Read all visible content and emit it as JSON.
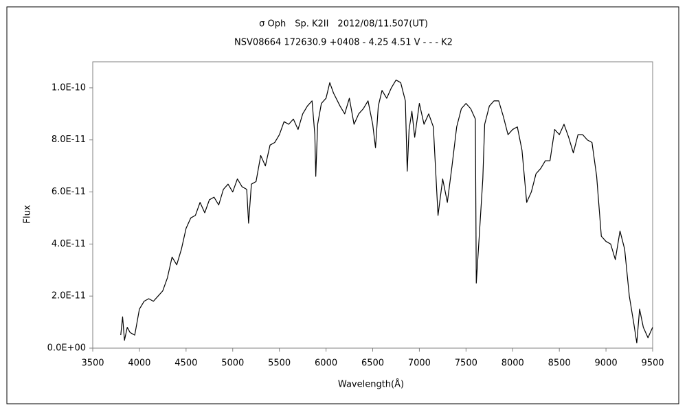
{
  "chart_data": {
    "type": "line",
    "title": "σ Oph　Sp. K2II　2012/08/11.507(UT)",
    "subtitle": "NSV08664 172630.9 +0408 - 4.25 4.51 V - - - K2",
    "xlabel": "Wavelength(Å)",
    "ylabel": "Flux",
    "xlim": [
      3500,
      9500
    ],
    "xticks": [
      3500,
      4000,
      4500,
      5000,
      5500,
      6000,
      6500,
      7000,
      7500,
      8000,
      8500,
      9000,
      9500
    ],
    "ylim": [
      0,
      1.1e-10
    ],
    "yticks": [
      {
        "value": 0,
        "label": "0.0E+00"
      },
      {
        "value": 2e-11,
        "label": "2.0E-11"
      },
      {
        "value": 4e-11,
        "label": "4.0E-11"
      },
      {
        "value": 6e-11,
        "label": "6.0E-11"
      },
      {
        "value": 8e-11,
        "label": "8.0E-11"
      },
      {
        "value": 1e-10,
        "label": "1.0E-10"
      }
    ],
    "grid": false,
    "series": [
      {
        "color": "#000000",
        "x": [
          3800,
          3820,
          3840,
          3870,
          3900,
          3950,
          4000,
          4050,
          4100,
          4150,
          4200,
          4250,
          4300,
          4350,
          4400,
          4450,
          4500,
          4550,
          4600,
          4650,
          4700,
          4750,
          4800,
          4850,
          4900,
          4950,
          5000,
          5050,
          5100,
          5150,
          5170,
          5200,
          5250,
          5300,
          5350,
          5400,
          5450,
          5500,
          5550,
          5600,
          5650,
          5700,
          5750,
          5800,
          5850,
          5880,
          5890,
          5910,
          5950,
          6000,
          6040,
          6080,
          6150,
          6200,
          6250,
          6300,
          6350,
          6400,
          6450,
          6500,
          6530,
          6560,
          6600,
          6650,
          6700,
          6750,
          6800,
          6850,
          6870,
          6890,
          6920,
          6950,
          7000,
          7050,
          7100,
          7150,
          7200,
          7250,
          7300,
          7350,
          7400,
          7450,
          7500,
          7550,
          7600,
          7610,
          7640,
          7680,
          7700,
          7750,
          7800,
          7850,
          7900,
          7950,
          8000,
          8050,
          8100,
          8150,
          8200,
          8250,
          8300,
          8350,
          8400,
          8450,
          8500,
          8550,
          8600,
          8650,
          8700,
          8750,
          8800,
          8850,
          8900,
          8950,
          9000,
          9050,
          9100,
          9150,
          9200,
          9250,
          9300,
          9330,
          9360,
          9400,
          9450,
          9500
        ],
        "values": [
          5e-12,
          1.2e-11,
          3e-12,
          8e-12,
          6e-12,
          5e-12,
          1.5e-11,
          1.8e-11,
          1.9e-11,
          1.8e-11,
          2e-11,
          2.2e-11,
          2.7e-11,
          3.5e-11,
          3.2e-11,
          3.8e-11,
          4.6e-11,
          5e-11,
          5.1e-11,
          5.6e-11,
          5.2e-11,
          5.7e-11,
          5.8e-11,
          5.5e-11,
          6.1e-11,
          6.3e-11,
          6e-11,
          6.5e-11,
          6.2e-11,
          6.1e-11,
          4.8e-11,
          6.3e-11,
          6.4e-11,
          7.4e-11,
          7e-11,
          7.8e-11,
          7.9e-11,
          8.2e-11,
          8.7e-11,
          8.6e-11,
          8.8e-11,
          8.4e-11,
          9e-11,
          9.3e-11,
          9.5e-11,
          8.2e-11,
          6.6e-11,
          8.6e-11,
          9.4e-11,
          9.6e-11,
          1.02e-10,
          9.8e-11,
          9.3e-11,
          9e-11,
          9.6e-11,
          8.6e-11,
          9e-11,
          9.2e-11,
          9.5e-11,
          8.6e-11,
          7.7e-11,
          9.3e-11,
          9.9e-11,
          9.6e-11,
          1e-10,
          1.03e-10,
          1.02e-10,
          9.5e-11,
          6.8e-11,
          8.4e-11,
          9.1e-11,
          8.1e-11,
          9.4e-11,
          8.6e-11,
          9e-11,
          8.5e-11,
          5.1e-11,
          6.5e-11,
          5.6e-11,
          7e-11,
          8.5e-11,
          9.2e-11,
          9.4e-11,
          9.2e-11,
          8.8e-11,
          2.5e-11,
          4.2e-11,
          6.5e-11,
          8.6e-11,
          9.3e-11,
          9.5e-11,
          9.5e-11,
          8.9e-11,
          8.2e-11,
          8.4e-11,
          8.5e-11,
          7.6e-11,
          5.6e-11,
          6e-11,
          6.7e-11,
          6.9e-11,
          7.2e-11,
          7.2e-11,
          8.4e-11,
          8.2e-11,
          8.6e-11,
          8.1e-11,
          7.5e-11,
          8.2e-11,
          8.2e-11,
          8e-11,
          7.9e-11,
          6.6e-11,
          4.3e-11,
          4.1e-11,
          4e-11,
          3.4e-11,
          4.5e-11,
          3.8e-11,
          2e-11,
          9e-12,
          2e-12,
          1.5e-11,
          8e-12,
          4e-12,
          8e-12
        ]
      }
    ]
  }
}
